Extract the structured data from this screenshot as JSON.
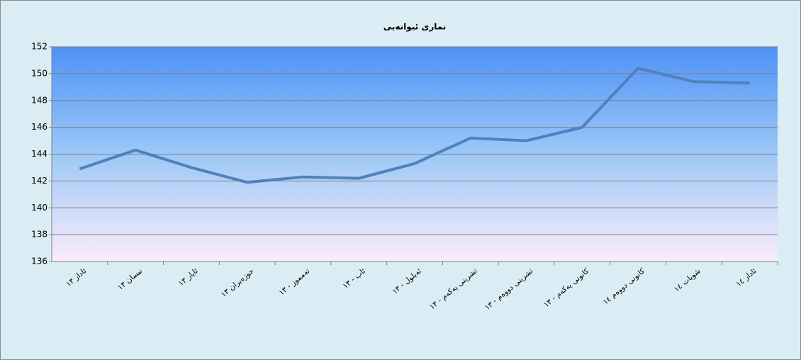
{
  "chart_data": {
    "type": "line",
    "title": "نماری ئیوانەیی",
    "categories": [
      "ئادار ١٣",
      "نیسان ١٣",
      "ئایار ١٣",
      "حوزەیران ١٣",
      "تەمموز - ١٣",
      "ئاب - ١٣",
      "ئەیلول - ١٣",
      "تشرینی یەکەم - ١٣",
      "تشرینی دووەم - ١٣",
      "کانونی یەکەم - ١٣",
      "کانونی دووەم ١٤",
      "شوبات ١٤",
      "ئادار ١٤"
    ],
    "series": [
      {
        "name": "",
        "color": "#4f81bd",
        "values": [
          142.9,
          144.3,
          143.0,
          141.9,
          142.3,
          142.2,
          143.3,
          145.2,
          145.0,
          146.0,
          150.4,
          149.4,
          149.3
        ]
      }
    ],
    "ylim": [
      136,
      152
    ],
    "yticks": [
      136,
      138,
      140,
      142,
      144,
      146,
      148,
      150,
      152
    ],
    "grid": true
  }
}
